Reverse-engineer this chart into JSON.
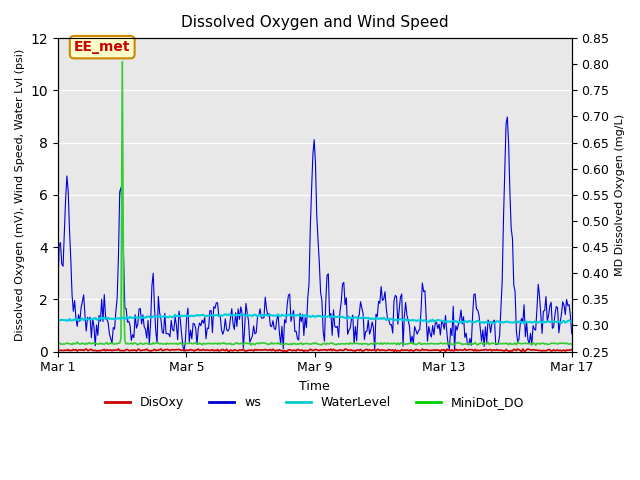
{
  "title": "Dissolved Oxygen and Wind Speed",
  "ylabel_left": "Dissolved Oxygen (mV), Wind Speed, Water Lvl (psi)",
  "ylabel_right": "MD Dissolved Oxygen (mg/L)",
  "xlabel": "Time",
  "ylim_left": [
    0,
    12
  ],
  "ylim_right": [
    0.25,
    0.85
  ],
  "yticks_left": [
    0,
    2,
    4,
    6,
    8,
    10,
    12
  ],
  "yticks_right": [
    0.25,
    0.3,
    0.35,
    0.4,
    0.45,
    0.5,
    0.55,
    0.6,
    0.65,
    0.7,
    0.75,
    0.8,
    0.85
  ],
  "xtick_labels": [
    "Mar 1",
    "Mar 5",
    "Mar 9",
    "Mar 13",
    "Mar 17"
  ],
  "xtick_positions": [
    0,
    4,
    8,
    12,
    16
  ],
  "annotation_text": "EE_met",
  "bg_color": "#e8e8e8",
  "legend_labels": [
    "DisOxy",
    "ws",
    "WaterLevel",
    "MiniDot_DO"
  ],
  "legend_colors": [
    "#cc0000",
    "#0000cc",
    "#00cccc",
    "#00cc00"
  ],
  "ws_color": "#0000dd",
  "disoxy_color": "#cc0000",
  "waterlevel_color": "#00ccdd",
  "minidot_color": "#33cc33"
}
